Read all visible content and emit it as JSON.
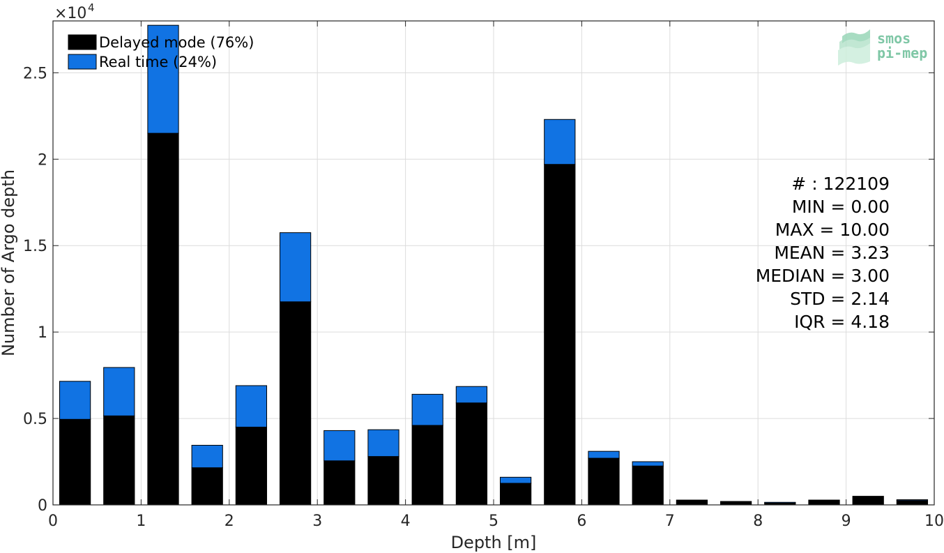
{
  "chart_data": {
    "type": "bar",
    "stacked": true,
    "xlabel": "Depth [m]",
    "ylabel": "Number of Argo depth",
    "y_exponent_label": "×10",
    "y_exponent_power": "4",
    "xlim": [
      0,
      10
    ],
    "ylim": [
      0,
      28000
    ],
    "xticks": [
      "0",
      "1",
      "2",
      "3",
      "4",
      "5",
      "6",
      "7",
      "8",
      "9",
      "10"
    ],
    "yticks": [
      {
        "value": 0,
        "label": "0"
      },
      {
        "value": 5000,
        "label": "0.5"
      },
      {
        "value": 10000,
        "label": "1"
      },
      {
        "value": 15000,
        "label": "1.5"
      },
      {
        "value": 20000,
        "label": "2"
      },
      {
        "value": 25000,
        "label": "2.5"
      }
    ],
    "grid": true,
    "legend_position": "top-left",
    "bin_width": 0.5,
    "x": [
      0.25,
      0.75,
      1.25,
      1.75,
      2.25,
      2.75,
      3.25,
      3.75,
      4.25,
      4.75,
      5.25,
      5.75,
      6.25,
      6.75,
      7.25,
      7.75,
      8.25,
      8.75,
      9.25,
      9.75
    ],
    "series": [
      {
        "name": "Delayed mode (76%)",
        "color": "#000000",
        "values": [
          4950,
          5150,
          21500,
          2150,
          4500,
          11750,
          2550,
          2800,
          4600,
          5900,
          1250,
          19700,
          2700,
          2250,
          280,
          200,
          100,
          280,
          500,
          250
        ]
      },
      {
        "name": "Real time (24%)",
        "color": "#1173e3",
        "values": [
          2200,
          2800,
          6250,
          1300,
          2400,
          4000,
          1750,
          1550,
          1800,
          950,
          350,
          2600,
          400,
          250,
          0,
          0,
          50,
          0,
          0,
          50
        ]
      }
    ],
    "stats": [
      "# : 122109",
      "MIN = 0.00",
      "MAX =  10.00",
      "MEAN = 3.23",
      "MEDIAN = 3.00",
      "STD = 2.14",
      "IQR = 4.18"
    ],
    "logo": {
      "line1": "smos",
      "line2": "pi-mep"
    }
  }
}
